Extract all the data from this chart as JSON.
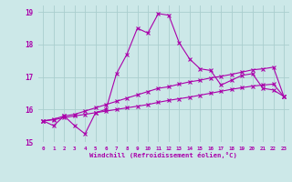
{
  "xlabel": "Windchill (Refroidissement éolien,°C)",
  "ylabel": "",
  "xlim": [
    -0.5,
    23.5
  ],
  "ylim": [
    15,
    19.2
  ],
  "yticks": [
    15,
    16,
    17,
    18,
    19
  ],
  "xticks": [
    0,
    1,
    2,
    3,
    4,
    5,
    6,
    7,
    8,
    9,
    10,
    11,
    12,
    13,
    14,
    15,
    16,
    17,
    18,
    19,
    20,
    21,
    22,
    23
  ],
  "background_color": "#cce8e8",
  "grid_color": "#aacece",
  "line_color": "#aa00aa",
  "line1_x": [
    0,
    1,
    2,
    3,
    4,
    5,
    6,
    7,
    8,
    9,
    10,
    11,
    12,
    13,
    14,
    15,
    16,
    17,
    18,
    19,
    20,
    21,
    22,
    23
  ],
  "line1_y": [
    15.65,
    15.5,
    15.8,
    15.5,
    15.25,
    15.9,
    16.0,
    17.1,
    17.7,
    18.5,
    18.35,
    18.95,
    18.9,
    18.05,
    17.55,
    17.25,
    17.2,
    16.75,
    16.9,
    17.05,
    17.1,
    16.65,
    16.6,
    16.4
  ],
  "line2_x": [
    0,
    1,
    2,
    3,
    4,
    5,
    6,
    7,
    8,
    9,
    10,
    11,
    12,
    13,
    14,
    15,
    16,
    17,
    18,
    19,
    20,
    21,
    22,
    23
  ],
  "line2_y": [
    15.65,
    15.7,
    15.8,
    15.85,
    15.95,
    16.05,
    16.15,
    16.25,
    16.35,
    16.45,
    16.55,
    16.65,
    16.7,
    16.78,
    16.85,
    16.9,
    16.97,
    17.02,
    17.08,
    17.15,
    17.22,
    17.25,
    17.3,
    16.4
  ],
  "line3_x": [
    0,
    1,
    2,
    3,
    4,
    5,
    6,
    7,
    8,
    9,
    10,
    11,
    12,
    13,
    14,
    15,
    16,
    17,
    18,
    19,
    20,
    21,
    22,
    23
  ],
  "line3_y": [
    15.65,
    15.68,
    15.75,
    15.8,
    15.85,
    15.9,
    15.95,
    16.0,
    16.05,
    16.1,
    16.15,
    16.22,
    16.28,
    16.33,
    16.38,
    16.44,
    16.5,
    16.56,
    16.62,
    16.67,
    16.72,
    16.75,
    16.78,
    16.4
  ]
}
